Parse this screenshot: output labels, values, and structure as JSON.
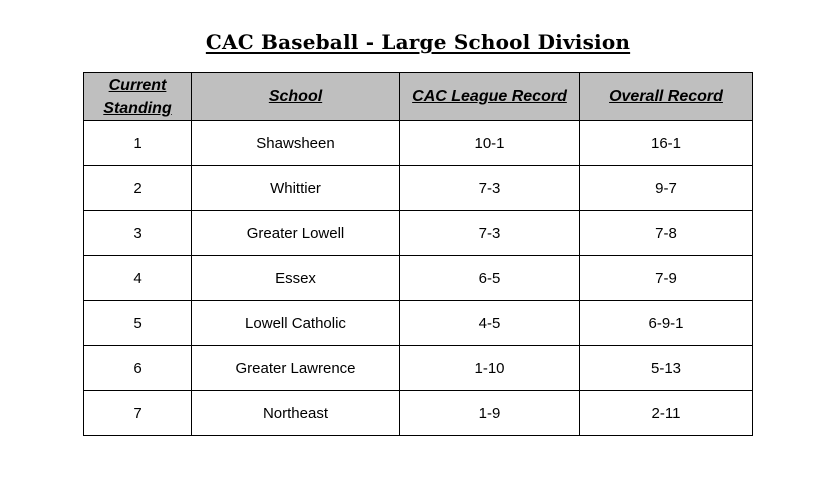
{
  "title": "CAC Baseball - Large School Division",
  "table": {
    "headers": {
      "standing_line1": "Current",
      "standing_line2": "Standing",
      "school": "School",
      "league_record": "CAC League Record",
      "overall_record": "Overall Record"
    },
    "rows": [
      {
        "standing": "1",
        "school": "Shawsheen",
        "league_record": "10-1",
        "overall_record": "16-1"
      },
      {
        "standing": "2",
        "school": "Whittier",
        "league_record": "7-3",
        "overall_record": "9-7"
      },
      {
        "standing": "3",
        "school": "Greater Lowell",
        "league_record": "7-3",
        "overall_record": "7-8"
      },
      {
        "standing": "4",
        "school": "Essex",
        "league_record": "6-5",
        "overall_record": "7-9"
      },
      {
        "standing": "5",
        "school": "Lowell Catholic",
        "league_record": "4-5",
        "overall_record": "6-9-1"
      },
      {
        "standing": "6",
        "school": "Greater Lawrence",
        "league_record": "1-10",
        "overall_record": "5-13"
      },
      {
        "standing": "7",
        "school": "Northeast",
        "league_record": "1-9",
        "overall_record": "2-11"
      }
    ]
  }
}
